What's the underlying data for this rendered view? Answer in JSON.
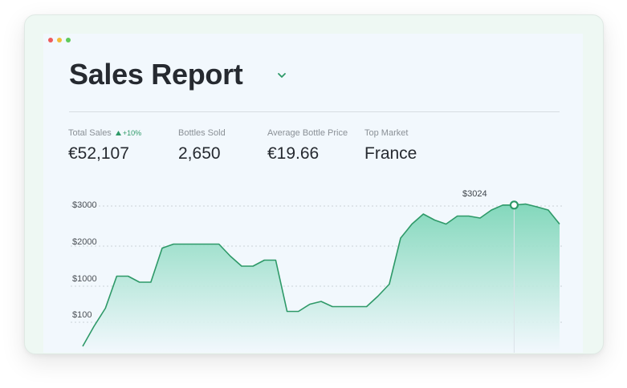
{
  "header": {
    "title": "Sales Report"
  },
  "stats": [
    {
      "label": "Total Sales",
      "value": "€52,107",
      "delta": "+10%"
    },
    {
      "label": "Bottles Sold",
      "value": "2,650"
    },
    {
      "label": "Average Bottle Price",
      "value": "€19.66"
    },
    {
      "label": "Top Market",
      "value": "France"
    }
  ],
  "colors": {
    "accent": "#2e9968",
    "area_top": "#7dd6b8",
    "area_bottom": "#f2f8fd"
  },
  "chart_data": {
    "type": "area",
    "title": "",
    "xlabel": "",
    "ylabel": "",
    "y_tick_labels": [
      "$3000",
      "$2000",
      "$1000",
      "$100"
    ],
    "y_tick_values": [
      3000,
      2000,
      1000,
      100
    ],
    "ylim": [
      -450,
      3400
    ],
    "grid": true,
    "highlight": {
      "label": "$3024",
      "value": 3024,
      "index": 38
    },
    "series": [
      {
        "values": [
          -500,
          0,
          450,
          1250,
          1250,
          1100,
          1100,
          1950,
          2050,
          2050,
          2050,
          2050,
          2050,
          1750,
          1500,
          1500,
          1650,
          1650,
          370,
          370,
          550,
          620,
          490,
          490,
          490,
          490,
          750,
          1050,
          2200,
          2550,
          2800,
          2650,
          2550,
          2750,
          2750,
          2700,
          2900,
          3024,
          3024,
          3050,
          2980,
          2900,
          2550
        ]
      }
    ]
  }
}
